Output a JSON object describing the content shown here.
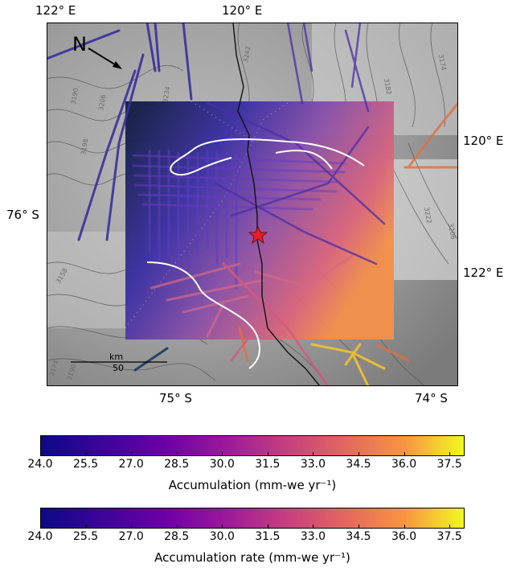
{
  "map": {
    "north_label": "N",
    "lon_top_left": "122° E",
    "lon_top_right": "120° E",
    "lon_right_upper": "120° E",
    "lon_right_lower": "122° E",
    "lat_left": "76° S",
    "lat_bottom_mid": "75° S",
    "lat_bottom_right": "74° S",
    "scalebar_unit": "km",
    "scalebar_value": "50",
    "contour_labels": [
      "3190",
      "3206",
      "3214",
      "3198",
      "3234",
      "3242",
      "3182",
      "3174",
      "3222",
      "3230",
      "3206",
      "3190",
      "3174",
      "3158"
    ],
    "marker": "star",
    "colors": {
      "marker": "#e8202a",
      "contour": "#555555"
    }
  },
  "colorbars": [
    {
      "ticks": [
        "24.0",
        "25.5",
        "27.0",
        "28.5",
        "30.0",
        "31.5",
        "33.0",
        "34.5",
        "36.0",
        "37.5"
      ],
      "title": "Accumulation (mm-we yr⁻¹)",
      "range": [
        24.0,
        38.0
      ],
      "colormap": "plasma"
    },
    {
      "ticks": [
        "24.0",
        "25.5",
        "27.0",
        "28.5",
        "30.0",
        "31.5",
        "33.0",
        "34.5",
        "36.0",
        "37.5"
      ],
      "title": "Accumulation rate (mm-we yr⁻¹)",
      "range": [
        24.0,
        38.0
      ],
      "colormap": "plasma"
    }
  ]
}
